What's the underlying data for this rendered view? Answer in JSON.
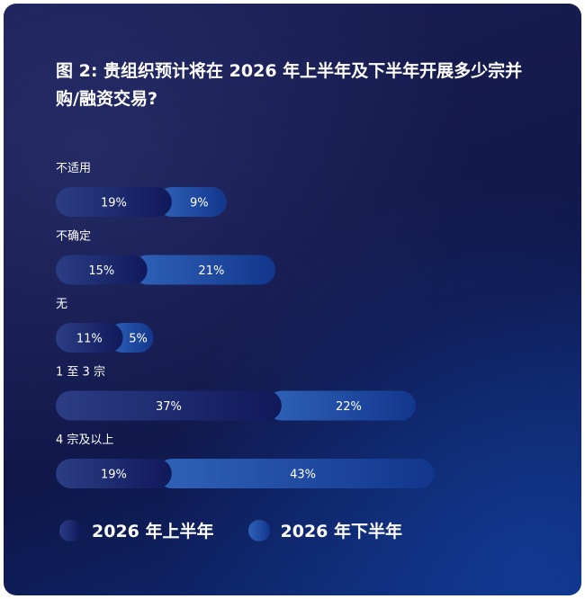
{
  "title": "图 2: 贵组织预计将在 2026 年上半年及下半年开展多少宗并购/融资交易?",
  "colors": {
    "h1_start": "#2c3d84",
    "h1_end": "#10195a",
    "h2_start": "#2f63b8",
    "h2_end": "#12368c",
    "text": "#ffffff"
  },
  "chart_data": {
    "type": "bar",
    "orientation": "horizontal",
    "stacked": true,
    "categories": [
      "不适用",
      "不确定",
      "无",
      "1 至 3 宗",
      "4 宗及以上"
    ],
    "series": [
      {
        "name": "2026 年上半年",
        "values": [
          19,
          15,
          11,
          37,
          19
        ],
        "labels": [
          "19%",
          "15%",
          "11%",
          "37%",
          "19%"
        ]
      },
      {
        "name": "2026 年下半年",
        "values": [
          9,
          21,
          5,
          22,
          43
        ],
        "labels": [
          "9%",
          "21%",
          "5%",
          "22%",
          "43%"
        ]
      }
    ],
    "unit": "%",
    "legend": "bottom-left"
  }
}
